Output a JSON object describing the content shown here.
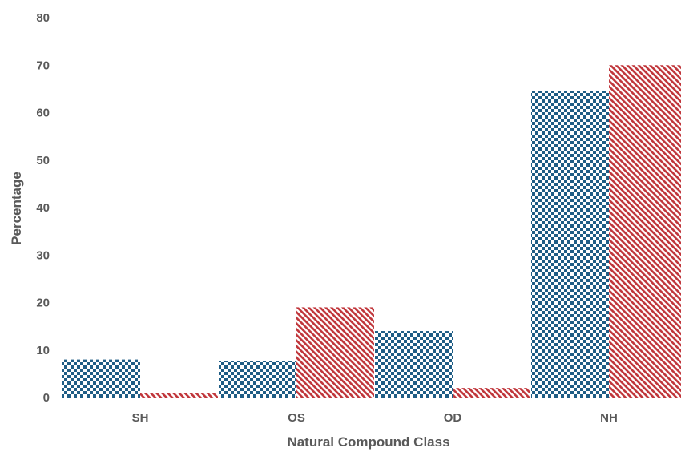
{
  "chart_data": {
    "type": "bar",
    "title": "",
    "xlabel": "Natural Compound Class",
    "ylabel": "Percentage",
    "categories": [
      "SH",
      "OS",
      "OD",
      "NH"
    ],
    "series": [
      {
        "values": [
          8,
          7.7,
          14,
          64.5
        ],
        "color": "#1f5d85",
        "pattern": "checkerboard"
      },
      {
        "values": [
          1,
          19,
          2,
          70
        ],
        "color": "#c0353a",
        "pattern": "diagonal-stripes"
      }
    ],
    "ylim": [
      0,
      80
    ],
    "yticks": [
      "0",
      "10",
      "20",
      "30",
      "40",
      "50",
      "60",
      "70",
      "80"
    ],
    "grid": false,
    "legend": "none"
  }
}
